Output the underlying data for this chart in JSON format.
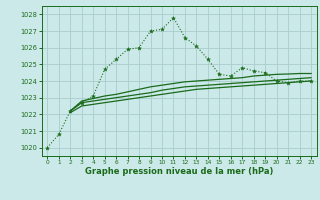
{
  "bg_color": "#cce9e9",
  "grid_color": "#aacccc",
  "line_color": "#1a6b1a",
  "xlabel": "Graphe pression niveau de la mer (hPa)",
  "ylim": [
    1019.5,
    1028.5
  ],
  "xlim": [
    -0.5,
    23.5
  ],
  "yticks": [
    1020,
    1021,
    1022,
    1023,
    1024,
    1025,
    1026,
    1027,
    1028
  ],
  "xticks": [
    0,
    1,
    2,
    3,
    4,
    5,
    6,
    7,
    8,
    9,
    10,
    11,
    12,
    13,
    14,
    15,
    16,
    17,
    18,
    19,
    20,
    21,
    22,
    23
  ],
  "series_dotted": {
    "x": [
      0,
      1,
      2,
      3,
      4,
      5,
      6,
      7,
      8,
      9,
      10,
      11,
      12,
      13,
      14,
      15,
      16,
      17,
      18,
      19,
      20,
      21,
      22,
      23
    ],
    "y": [
      1020.0,
      1020.8,
      1022.2,
      1022.7,
      1023.1,
      1024.7,
      1025.3,
      1025.9,
      1026.0,
      1027.0,
      1027.1,
      1027.8,
      1026.6,
      1026.1,
      1025.3,
      1024.4,
      1024.3,
      1024.8,
      1024.6,
      1024.5,
      1024.0,
      1023.9,
      1024.0,
      1024.0
    ]
  },
  "series_solid1": {
    "x": [
      2,
      3,
      4,
      5,
      6,
      7,
      8,
      9,
      10,
      11,
      12,
      13,
      14,
      15,
      16,
      17,
      18,
      19,
      20,
      21,
      22,
      23
    ],
    "y": [
      1022.2,
      1022.8,
      1022.95,
      1023.1,
      1023.2,
      1023.35,
      1023.5,
      1023.65,
      1023.75,
      1023.85,
      1023.95,
      1024.0,
      1024.05,
      1024.1,
      1024.15,
      1024.2,
      1024.3,
      1024.35,
      1024.4,
      1024.42,
      1024.45,
      1024.45
    ]
  },
  "series_solid2": {
    "x": [
      2,
      3,
      4,
      5,
      6,
      7,
      8,
      9,
      10,
      11,
      12,
      13,
      14,
      15,
      16,
      17,
      18,
      19,
      20,
      21,
      22,
      23
    ],
    "y": [
      1022.2,
      1022.7,
      1022.8,
      1022.9,
      1023.0,
      1023.1,
      1023.2,
      1023.3,
      1023.45,
      1023.55,
      1023.65,
      1023.7,
      1023.75,
      1023.8,
      1023.85,
      1023.9,
      1023.95,
      1024.0,
      1024.05,
      1024.1,
      1024.15,
      1024.2
    ]
  },
  "series_solid3": {
    "x": [
      2,
      3,
      4,
      5,
      6,
      7,
      8,
      9,
      10,
      11,
      12,
      13,
      14,
      15,
      16,
      17,
      18,
      19,
      20,
      21,
      22,
      23
    ],
    "y": [
      1022.1,
      1022.5,
      1022.6,
      1022.7,
      1022.8,
      1022.9,
      1023.0,
      1023.1,
      1023.2,
      1023.3,
      1023.4,
      1023.5,
      1023.55,
      1023.6,
      1023.65,
      1023.7,
      1023.75,
      1023.8,
      1023.85,
      1023.9,
      1023.95,
      1024.0
    ]
  }
}
